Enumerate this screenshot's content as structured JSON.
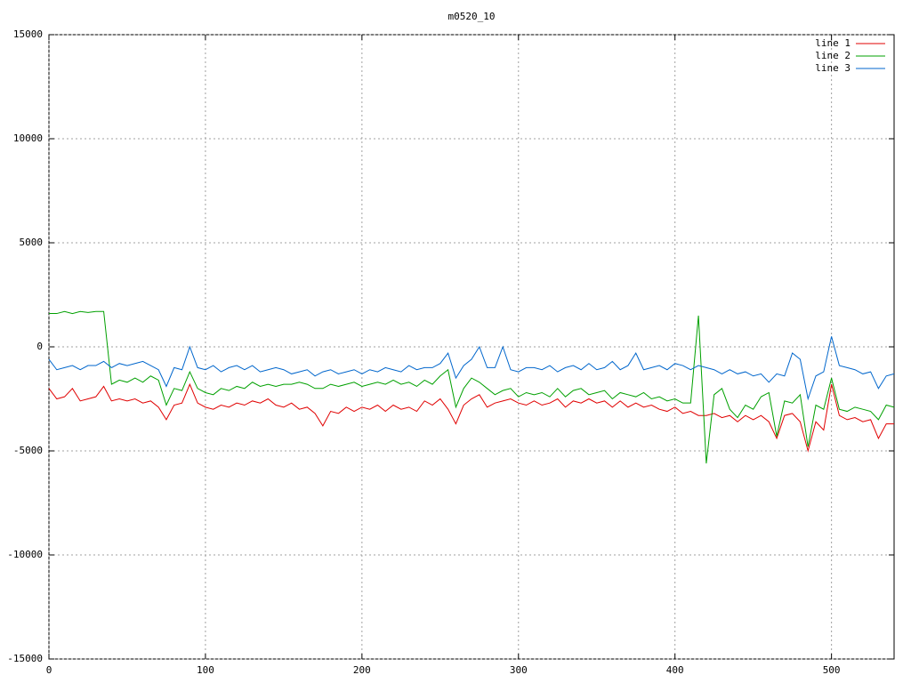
{
  "chart_data": {
    "type": "line",
    "title": "m0520_10",
    "x": [
      0,
      5,
      10,
      15,
      20,
      25,
      30,
      35,
      40,
      45,
      50,
      55,
      60,
      65,
      70,
      75,
      80,
      85,
      90,
      95,
      100,
      105,
      110,
      115,
      120,
      125,
      130,
      135,
      140,
      145,
      150,
      155,
      160,
      165,
      170,
      175,
      180,
      185,
      190,
      195,
      200,
      205,
      210,
      215,
      220,
      225,
      230,
      235,
      240,
      245,
      250,
      255,
      260,
      265,
      270,
      275,
      280,
      285,
      290,
      295,
      300,
      305,
      310,
      315,
      320,
      325,
      330,
      335,
      340,
      345,
      350,
      355,
      360,
      365,
      370,
      375,
      380,
      385,
      390,
      395,
      400,
      405,
      410,
      415,
      420,
      425,
      430,
      435,
      440,
      445,
      450,
      455,
      460,
      465,
      470,
      475,
      480,
      485,
      490,
      495,
      500,
      505,
      510,
      515,
      520,
      525,
      530,
      535,
      540
    ],
    "series": [
      {
        "name": "line 1",
        "color": "#e00000",
        "values": [
          -2000,
          -2500,
          -2400,
          -2000,
          -2600,
          -2500,
          -2400,
          -1900,
          -2600,
          -2500,
          -2600,
          -2500,
          -2700,
          -2600,
          -2900,
          -3500,
          -2800,
          -2700,
          -1800,
          -2700,
          -2900,
          -3000,
          -2800,
          -2900,
          -2700,
          -2800,
          -2600,
          -2700,
          -2500,
          -2800,
          -2900,
          -2700,
          -3000,
          -2900,
          -3200,
          -3800,
          -3100,
          -3200,
          -2900,
          -3100,
          -2900,
          -3000,
          -2800,
          -3100,
          -2800,
          -3000,
          -2900,
          -3100,
          -2600,
          -2800,
          -2500,
          -3000,
          -3700,
          -2800,
          -2500,
          -2300,
          -2900,
          -2700,
          -2600,
          -2500,
          -2700,
          -2800,
          -2600,
          -2800,
          -2700,
          -2500,
          -2900,
          -2600,
          -2700,
          -2500,
          -2700,
          -2600,
          -2900,
          -2600,
          -2900,
          -2700,
          -2900,
          -2800,
          -3000,
          -3100,
          -2900,
          -3200,
          -3100,
          -3300,
          -3300,
          -3200,
          -3400,
          -3300,
          -3600,
          -3300,
          -3500,
          -3300,
          -3600,
          -4400,
          -3300,
          -3200,
          -3600,
          -5000,
          -3600,
          -4000,
          -1800,
          -3300,
          -3500,
          -3400,
          -3600,
          -3500,
          -4400,
          -3700,
          -3700
        ]
      },
      {
        "name": "line 2",
        "color": "#00a000",
        "values": [
          1600,
          1600,
          1700,
          1600,
          1700,
          1650,
          1700,
          1700,
          -1800,
          -1600,
          -1700,
          -1500,
          -1700,
          -1400,
          -1600,
          -2800,
          -2000,
          -2100,
          -1200,
          -2000,
          -2200,
          -2300,
          -2000,
          -2100,
          -1900,
          -2000,
          -1700,
          -1900,
          -1800,
          -1900,
          -1800,
          -1800,
          -1700,
          -1800,
          -2000,
          -2000,
          -1800,
          -1900,
          -1800,
          -1700,
          -1900,
          -1800,
          -1700,
          -1800,
          -1600,
          -1800,
          -1700,
          -1900,
          -1600,
          -1800,
          -1400,
          -1100,
          -2900,
          -2000,
          -1500,
          -1700,
          -2000,
          -2300,
          -2100,
          -2000,
          -2400,
          -2200,
          -2300,
          -2200,
          -2400,
          -2000,
          -2400,
          -2100,
          -2000,
          -2300,
          -2200,
          -2100,
          -2500,
          -2200,
          -2300,
          -2400,
          -2200,
          -2500,
          -2400,
          -2600,
          -2500,
          -2700,
          -2700,
          1500,
          -5600,
          -2300,
          -2000,
          -3000,
          -3400,
          -2800,
          -3000,
          -2400,
          -2200,
          -4300,
          -2600,
          -2700,
          -2300,
          -4800,
          -2800,
          -3000,
          -1500,
          -3000,
          -3100,
          -2900,
          -3000,
          -3100,
          -3500,
          -2800,
          -2900
        ]
      },
      {
        "name": "line 3",
        "color": "#0066cc",
        "values": [
          -600,
          -1100,
          -1000,
          -900,
          -1100,
          -900,
          -900,
          -700,
          -1000,
          -800,
          -900,
          -800,
          -700,
          -900,
          -1100,
          -1900,
          -1000,
          -1100,
          0,
          -1000,
          -1100,
          -900,
          -1200,
          -1000,
          -900,
          -1100,
          -900,
          -1200,
          -1100,
          -1000,
          -1100,
          -1300,
          -1200,
          -1100,
          -1400,
          -1200,
          -1100,
          -1300,
          -1200,
          -1100,
          -1300,
          -1100,
          -1200,
          -1000,
          -1100,
          -1200,
          -900,
          -1100,
          -1000,
          -1000,
          -800,
          -300,
          -1500,
          -900,
          -600,
          0,
          -1000,
          -1000,
          0,
          -1100,
          -1200,
          -1000,
          -1000,
          -1100,
          -900,
          -1200,
          -1000,
          -900,
          -1100,
          -800,
          -1100,
          -1000,
          -700,
          -1100,
          -900,
          -300,
          -1100,
          -1000,
          -900,
          -1100,
          -800,
          -900,
          -1100,
          -900,
          -1000,
          -1100,
          -1300,
          -1100,
          -1300,
          -1200,
          -1400,
          -1300,
          -1700,
          -1300,
          -1400,
          -300,
          -600,
          -2500,
          -1400,
          -1200,
          500,
          -900,
          -1000,
          -1100,
          -1300,
          -1200,
          -2000,
          -1400,
          -1300
        ]
      }
    ],
    "xlim": [
      0,
      540
    ],
    "xticks": [
      0,
      100,
      200,
      300,
      400,
      500
    ],
    "ylim": [
      -15000,
      15000
    ],
    "yticks": [
      -15000,
      -10000,
      -5000,
      0,
      5000,
      10000,
      15000
    ],
    "grid": true,
    "legend": "top-right"
  }
}
